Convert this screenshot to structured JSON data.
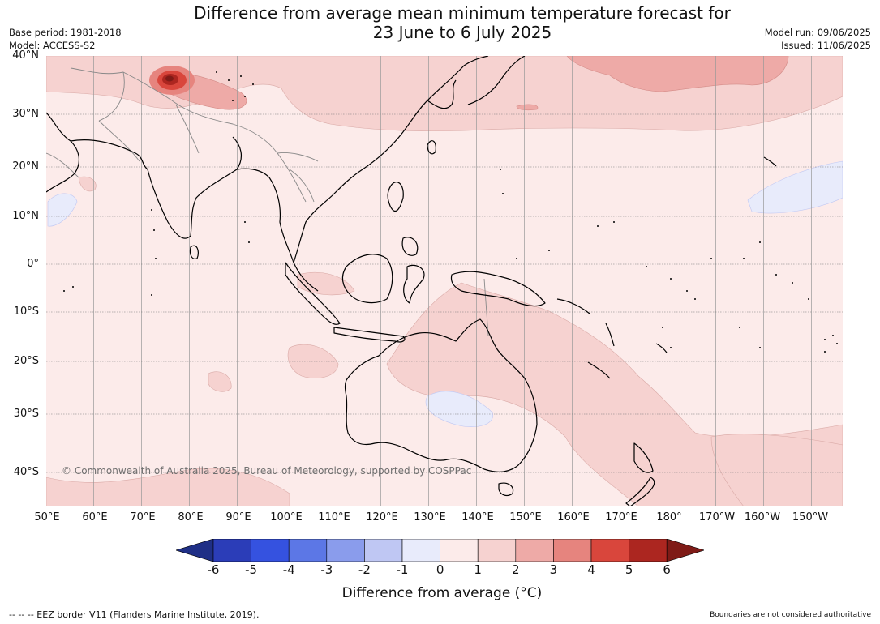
{
  "title_line1": "Difference from average mean minimum temperature forecast for",
  "title_line2": "23 June to 6 July 2025",
  "base_period": "Base period: 1981-2018",
  "model": "Model: ACCESS-S2",
  "model_run": "Model run: 09/06/2025",
  "issued": "Issued: 11/06/2025",
  "copyright": "© Commonwealth of Australia 2025, Bureau of Meteorology, supported by COSPPac",
  "lat_labels": [
    "40°N",
    "30°N",
    "20°N",
    "10°N",
    "0°",
    "10°S",
    "20°S",
    "30°S",
    "40°S"
  ],
  "lon_labels": [
    "50°E",
    "60°E",
    "70°E",
    "80°E",
    "90°E",
    "100°E",
    "110°E",
    "120°E",
    "130°E",
    "140°E",
    "150°E",
    "160°E",
    "170°E",
    "180°",
    "170°W",
    "160°W",
    "150°W"
  ],
  "colorbar": {
    "ticks": [
      "-6",
      "-5",
      "-4",
      "-3",
      "-2",
      "-1",
      "0",
      "1",
      "2",
      "3",
      "4",
      "5",
      "6"
    ],
    "colors": [
      "#1f2f86",
      "#2b3db8",
      "#3552e0",
      "#5c77e6",
      "#8a9cec",
      "#bfc7f3",
      "#e8ebfb",
      "#fcebea",
      "#f6d2d0",
      "#eeaaa7",
      "#e6847e",
      "#d9463c",
      "#ac2620",
      "#7f1b17"
    ],
    "label": "Difference from average (°C)"
  },
  "footer_left": "--  --  -- EEZ border V11 (Flanders Marine Institute, 2019).",
  "footer_right": "Boundaries are not considered authoritative"
}
